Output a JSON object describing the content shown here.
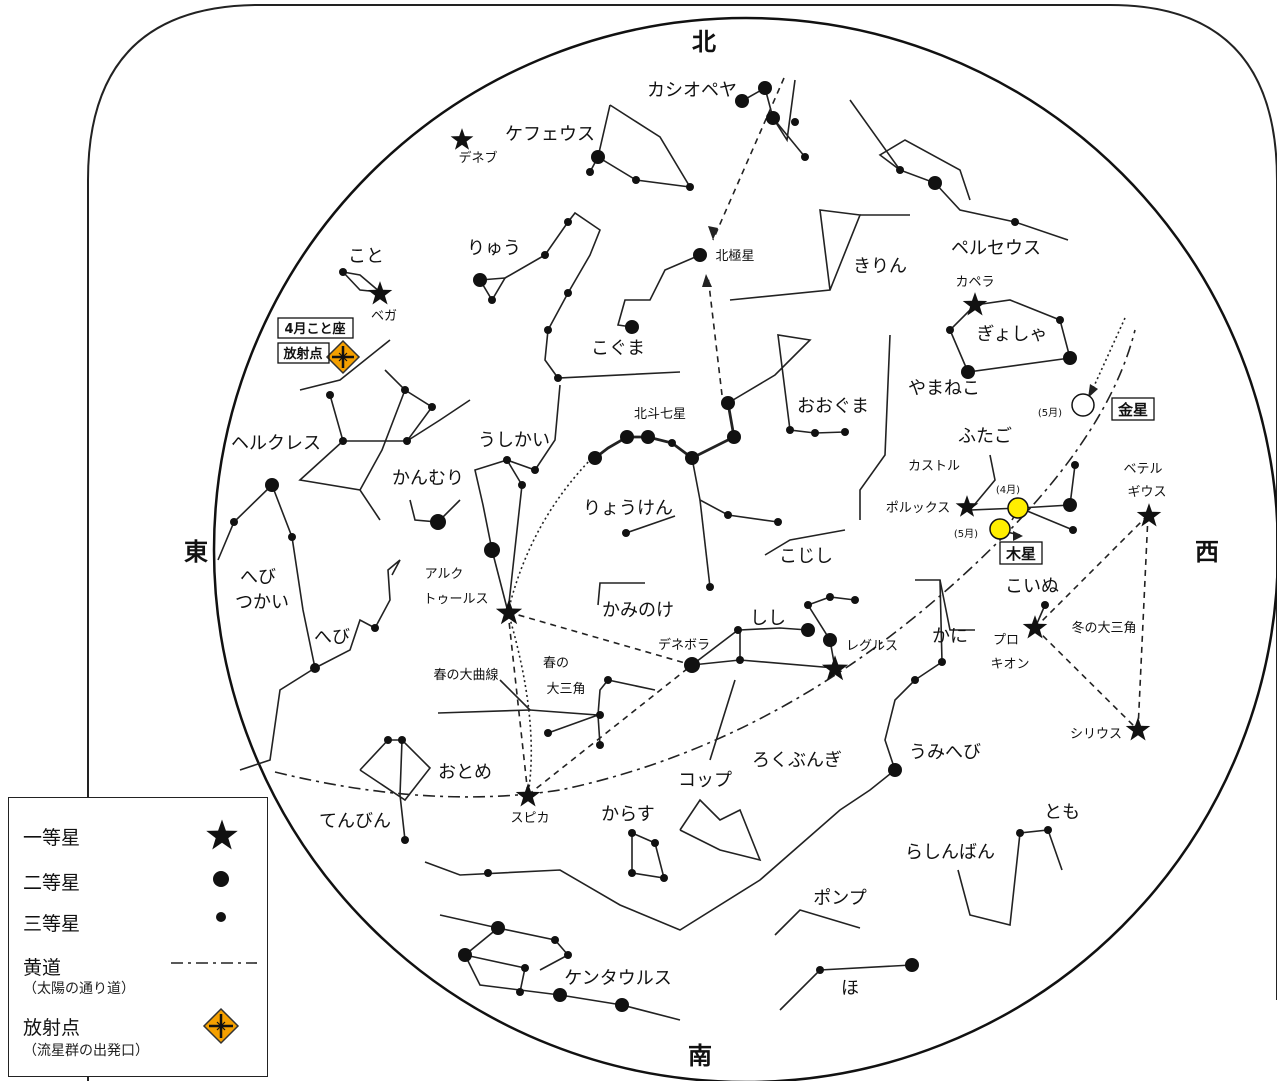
{
  "directions": {
    "north": "北",
    "south": "南",
    "east": "東",
    "west": "西"
  },
  "constellations": {
    "cassiopeia": "カシオペヤ",
    "cepheus": "ケフェウス",
    "draco": "りゅう",
    "lyra": "こと",
    "ursa_minor": "こぐま",
    "camelopardalis": "きりん",
    "perseus": "ペルセウス",
    "auriga": "ぎょしゃ",
    "lynx": "やまねこ",
    "ursa_major": "おおぐま",
    "gemini": "ふたご",
    "hercules": "ヘルクレス",
    "corona_borealis": "かんむり",
    "bootes": "うしかい",
    "canes_venatici": "りょうけん",
    "leo_minor": "こじし",
    "ophiuchus": "へび\nつかい",
    "serpens": "へび",
    "coma": "かみのけ",
    "leo": "しし",
    "cancer": "かに",
    "canis_minor": "こいぬ",
    "virgo": "おとめ",
    "libra": "てんびん",
    "corvus": "からす",
    "crater": "コップ",
    "sextans": "ろくぶんぎ",
    "hydra": "うみへび",
    "puppis": "とも",
    "pyxis": "らしんばん",
    "antlia": "ポンプ",
    "centaurus": "ケンタウルス",
    "lupus": "ほ"
  },
  "stars": {
    "deneb": "デネブ",
    "vega": "ベガ",
    "polaris": "北極星",
    "capella": "カペラ",
    "castor": "カストル",
    "pollux": "ポルックス",
    "arcturus_1": "アルク",
    "arcturus_2": "トゥールス",
    "denebola": "デネボラ",
    "regulus": "レグルス",
    "betelgeuse_1": "ベテル",
    "betelgeuse_2": "ギウス",
    "procyon_1": "プロ",
    "procyon_2": "キオン",
    "sirius": "シリウス",
    "spica": "スピカ",
    "big_dipper": "北斗七星"
  },
  "annotations": {
    "radiant_line1": "4月こと座",
    "radiant_line2": "放射点",
    "venus": "金星",
    "venus_month": "(5月)",
    "jupiter": "木星",
    "jupiter_april": "(4月)",
    "jupiter_may": "(5月)",
    "spring_curve": "春の大曲線",
    "spring_triangle_1": "春の",
    "spring_triangle_2": "大三角",
    "winter_triangle": "冬の大三角"
  },
  "planets": {
    "venus_color": "#ffffff",
    "jupiter_color": "#ffee00"
  },
  "legend": {
    "first_mag": "一等星",
    "second_mag": "二等星",
    "third_mag": "三等星",
    "ecliptic": "黄道",
    "ecliptic_note": "（太陽の通り道）",
    "radiant": "放射点",
    "radiant_note": "（流星群の出発口）",
    "radiant_color": "#f5a000"
  }
}
